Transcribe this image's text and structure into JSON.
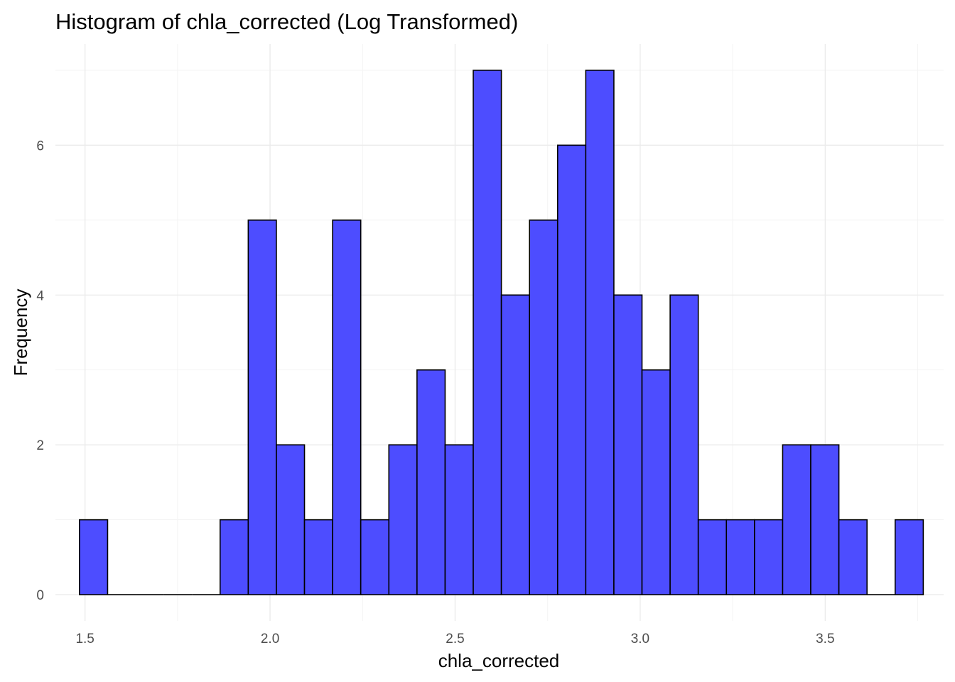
{
  "chart_data": {
    "type": "bar",
    "title": "Histogram of chla_corrected (Log Transformed)",
    "xlabel": "chla_corrected",
    "ylabel": "Frequency",
    "x_ticks": [
      1.5,
      2.0,
      2.5,
      3.0,
      3.5
    ],
    "x_tick_labels": [
      "1.5",
      "2.0",
      "2.5",
      "3.0",
      "3.5"
    ],
    "y_ticks": [
      0,
      2,
      4,
      6
    ],
    "y_tick_labels": [
      "0",
      "2",
      "4",
      "6"
    ],
    "xlim": [
      1.42,
      3.82
    ],
    "ylim": [
      -0.35,
      7.35
    ],
    "grid": true,
    "bar_color": "#4d4dff",
    "bar_border": "#000000",
    "bins": [
      {
        "start": 1.485,
        "end": 1.561,
        "count": 1
      },
      {
        "start": 1.561,
        "end": 1.637,
        "count": 0
      },
      {
        "start": 1.637,
        "end": 1.713,
        "count": 0
      },
      {
        "start": 1.713,
        "end": 1.789,
        "count": 0
      },
      {
        "start": 1.789,
        "end": 1.865,
        "count": 0
      },
      {
        "start": 1.865,
        "end": 1.941,
        "count": 1
      },
      {
        "start": 1.941,
        "end": 2.017,
        "count": 5
      },
      {
        "start": 2.017,
        "end": 2.093,
        "count": 2
      },
      {
        "start": 2.093,
        "end": 2.169,
        "count": 1
      },
      {
        "start": 2.169,
        "end": 2.245,
        "count": 5
      },
      {
        "start": 2.245,
        "end": 2.321,
        "count": 1
      },
      {
        "start": 2.321,
        "end": 2.397,
        "count": 2
      },
      {
        "start": 2.397,
        "end": 2.473,
        "count": 3
      },
      {
        "start": 2.473,
        "end": 2.549,
        "count": 2
      },
      {
        "start": 2.549,
        "end": 2.625,
        "count": 7
      },
      {
        "start": 2.625,
        "end": 2.701,
        "count": 4
      },
      {
        "start": 2.701,
        "end": 2.777,
        "count": 5
      },
      {
        "start": 2.777,
        "end": 2.853,
        "count": 6
      },
      {
        "start": 2.853,
        "end": 2.929,
        "count": 7
      },
      {
        "start": 2.929,
        "end": 3.005,
        "count": 4
      },
      {
        "start": 3.005,
        "end": 3.081,
        "count": 3
      },
      {
        "start": 3.081,
        "end": 3.157,
        "count": 4
      },
      {
        "start": 3.157,
        "end": 3.233,
        "count": 1
      },
      {
        "start": 3.233,
        "end": 3.309,
        "count": 1
      },
      {
        "start": 3.309,
        "end": 3.385,
        "count": 1
      },
      {
        "start": 3.385,
        "end": 3.461,
        "count": 2
      },
      {
        "start": 3.461,
        "end": 3.537,
        "count": 2
      },
      {
        "start": 3.537,
        "end": 3.613,
        "count": 1
      },
      {
        "start": 3.613,
        "end": 3.689,
        "count": 0
      },
      {
        "start": 3.689,
        "end": 3.765,
        "count": 1
      }
    ]
  }
}
